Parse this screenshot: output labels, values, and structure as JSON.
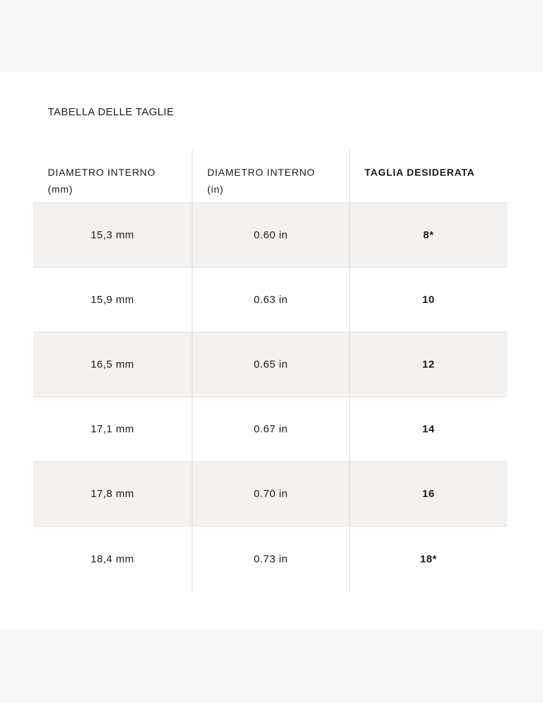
{
  "page": {
    "title": "TABELLA DELLE TAGLIE"
  },
  "size_table": {
    "headers": {
      "diameter_mm": {
        "line1": "DIAMETRO INTERNO",
        "line2": "(mm)"
      },
      "diameter_in": {
        "line1": "DIAMETRO INTERNO",
        "line2": "(in)"
      },
      "desired_size": {
        "label": "TAGLIA DESIDERATA"
      }
    },
    "rows": [
      {
        "diameter_mm": "15,3 mm",
        "diameter_in": "0.60 in",
        "size": "8*"
      },
      {
        "diameter_mm": "15,9 mm",
        "diameter_in": "0.63 in",
        "size": "10"
      },
      {
        "diameter_mm": "16,5 mm",
        "diameter_in": "0.65 in",
        "size": "12"
      },
      {
        "diameter_mm": "17,1 mm",
        "diameter_in": "0.67 in",
        "size": "14"
      },
      {
        "diameter_mm": "17,8 mm",
        "diameter_in": "0.70 in",
        "size": "16"
      },
      {
        "diameter_mm": "18,4 mm",
        "diameter_in": "0.73 in",
        "size": "18*"
      }
    ]
  },
  "colors": {
    "page_band": "#f6f6f6",
    "row_shade": "#f5f1ee",
    "row_border": "#e8e4e1",
    "column_divider": "#dfdcd9",
    "text": "#1a1a1a"
  }
}
